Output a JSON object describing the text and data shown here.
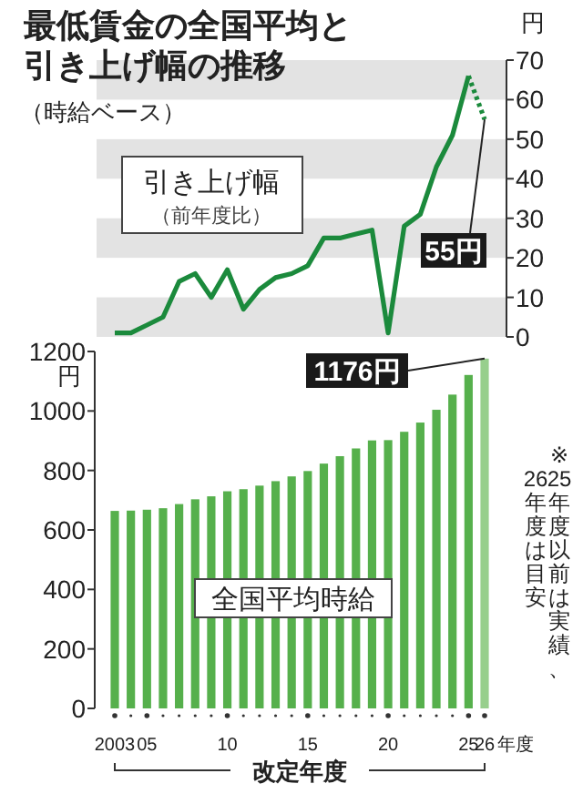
{
  "chart_data": [
    {
      "type": "line",
      "title": "最低賃金の全国平均と引き上げ幅の推移",
      "subtitle": "（時給ベース）",
      "ylabel": "円",
      "categories": [
        "2003",
        null,
        "05",
        null,
        null,
        null,
        null,
        "10",
        null,
        null,
        null,
        null,
        "15",
        null,
        null,
        null,
        null,
        "20",
        null,
        null,
        null,
        null,
        "25",
        "26"
      ],
      "series": [
        {
          "color": "#1b8a3c",
          "line_style": "solid",
          "values": [
            1,
            1,
            3,
            5,
            14,
            16,
            10,
            17,
            7,
            12,
            15,
            16,
            18,
            25,
            25,
            26,
            27,
            1,
            28,
            31,
            43,
            51,
            66,
            null
          ]
        },
        {
          "color": "#1b8a3c",
          "line_style": "dotted",
          "values": [
            null,
            null,
            null,
            null,
            null,
            null,
            null,
            null,
            null,
            null,
            null,
            null,
            null,
            null,
            null,
            null,
            null,
            null,
            null,
            null,
            null,
            null,
            66,
            55
          ]
        }
      ],
      "ylim": [
        0,
        70
      ],
      "yticks": [
        0,
        10,
        20,
        30,
        40,
        50,
        60,
        70
      ],
      "tick_labels": "y",
      "grid": false,
      "bands": [
        {
          "axis": "y",
          "from": 0,
          "to": 10,
          "color": "#e3e3e3"
        },
        {
          "axis": "y",
          "from": 20,
          "to": 30,
          "color": "#e3e3e3"
        },
        {
          "axis": "y",
          "from": 40,
          "to": 50,
          "color": "#e3e3e3"
        },
        {
          "axis": "y",
          "from": 60,
          "to": 70,
          "color": "#e3e3e3"
        }
      ],
      "annotations": [
        "引き上げ幅",
        "（前年度比）",
        {
          "text": "55円",
          "x": "26",
          "y": 55
        }
      ]
    },
    {
      "type": "bar",
      "xlabel": "改定年度",
      "ylabel": "円",
      "categories": [
        "2003",
        null,
        "05",
        null,
        null,
        null,
        null,
        "10",
        null,
        null,
        null,
        null,
        "15",
        null,
        null,
        null,
        null,
        "20",
        null,
        null,
        null,
        null,
        "25",
        "26"
      ],
      "values": [
        664,
        665,
        668,
        673,
        687,
        703,
        713,
        730,
        737,
        749,
        764,
        780,
        798,
        823,
        848,
        874,
        901,
        902,
        930,
        961,
        1004,
        1055,
        1121,
        1176
      ],
      "colors": [
        "#56b04c",
        "#56b04c",
        "#56b04c",
        "#56b04c",
        "#56b04c",
        "#56b04c",
        "#56b04c",
        "#56b04c",
        "#56b04c",
        "#56b04c",
        "#56b04c",
        "#56b04c",
        "#56b04c",
        "#56b04c",
        "#56b04c",
        "#56b04c",
        "#56b04c",
        "#56b04c",
        "#56b04c",
        "#56b04c",
        "#56b04c",
        "#56b04c",
        "#56b04c",
        "#97cf8c"
      ],
      "ylim": [
        0,
        1200
      ],
      "yticks": [
        0,
        200,
        400,
        600,
        800,
        1000,
        1200
      ],
      "grid": false,
      "annotations": [
        {
          "text": "1176円",
          "x": "26",
          "y": 1176
        },
        "全国平均時給",
        "※25年度以前は実績、",
        "26年度は目安",
        "年度"
      ]
    }
  ]
}
